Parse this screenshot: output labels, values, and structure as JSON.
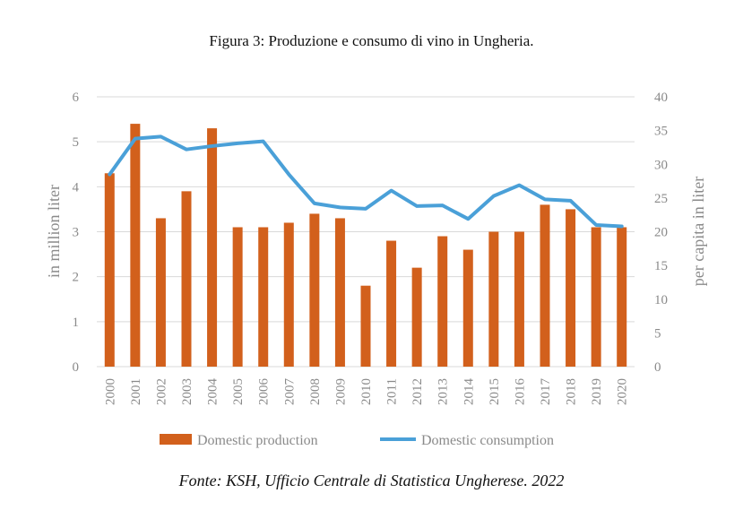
{
  "caption": {
    "title": "Figura 3: Produzione e consumo di vino in Ungheria.",
    "source": "Fonte: KSH, Ufficio Centrale di Statistica Ungherese. 2022"
  },
  "colors": {
    "bar": "#d2601c",
    "line": "#4aa0d8",
    "grid": "#d9d9d9",
    "axis_text": "#8a8a8a"
  },
  "chart_data": {
    "type": "bar+line",
    "categories": [
      "2000",
      "2001",
      "2002",
      "2003",
      "2004",
      "2005",
      "2006",
      "2007",
      "2008",
      "2009",
      "2010",
      "2011",
      "2012",
      "2013",
      "2014",
      "2015",
      "2016",
      "2017",
      "2018",
      "2019",
      "2020"
    ],
    "series": [
      {
        "name": "Domestic production",
        "type": "bar",
        "axis": "left",
        "values": [
          4.3,
          5.4,
          3.3,
          3.9,
          5.3,
          3.1,
          3.1,
          3.2,
          3.4,
          3.3,
          1.8,
          2.8,
          2.2,
          2.9,
          2.6,
          3.0,
          3.0,
          3.6,
          3.5,
          3.1,
          3.1
        ]
      },
      {
        "name": "Domestic consumption",
        "type": "line",
        "axis": "right",
        "values": [
          28.5,
          33.8,
          34.1,
          32.2,
          32.7,
          33.1,
          33.4,
          28.5,
          24.2,
          23.6,
          23.4,
          26.1,
          23.8,
          23.9,
          21.9,
          25.3,
          26.9,
          24.8,
          24.6,
          21.0,
          20.8
        ]
      }
    ],
    "ylabel_left": "in million liter",
    "ylabel_right": "per capita in liter",
    "ylim_left": [
      0,
      6
    ],
    "yticks_left": [
      "0",
      "1",
      "2",
      "3",
      "4",
      "5",
      "6"
    ],
    "ylim_right": [
      0,
      40
    ],
    "yticks_right": [
      "0",
      "5",
      "10",
      "15",
      "20",
      "25",
      "30",
      "35",
      "40"
    ],
    "grid": true,
    "legend_position": "bottom"
  }
}
